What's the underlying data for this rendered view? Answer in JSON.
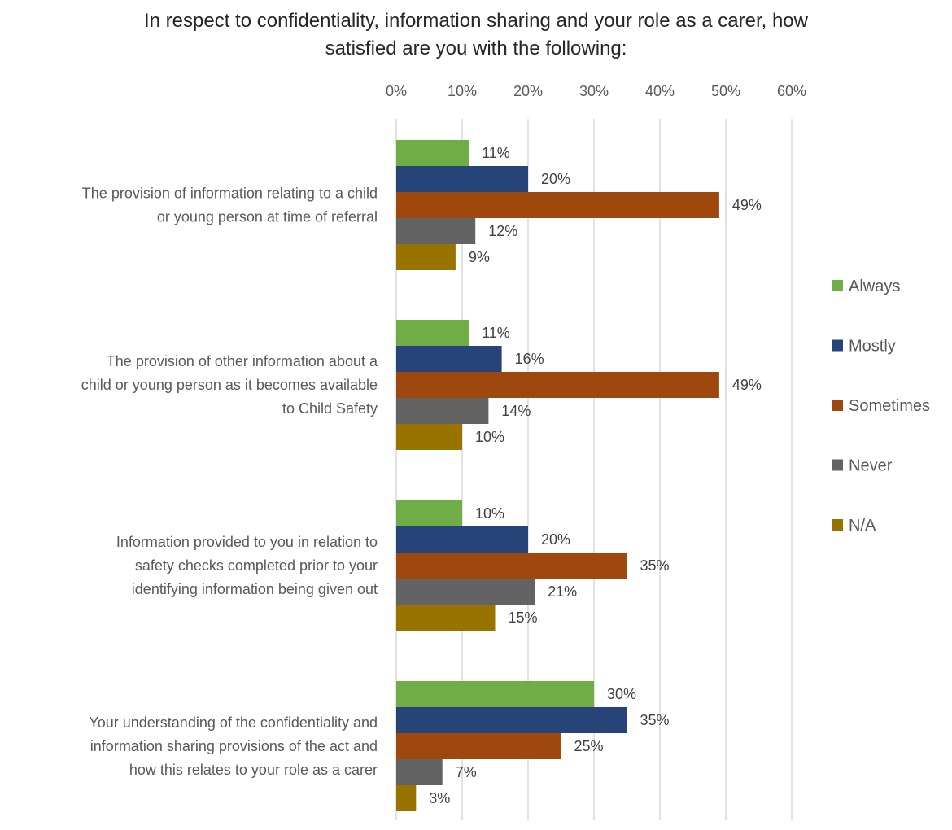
{
  "chart_data": {
    "type": "bar",
    "orientation": "horizontal",
    "title_lines": [
      "In respect to confidentiality, information sharing and your role as a carer, how",
      "satisfied are you with the following:"
    ],
    "categories": [
      [
        "The provision of information relating to a child",
        "or young person at time of referral"
      ],
      [
        "The provision of other information about a",
        "child or young person as it becomes available",
        "to Child Safety"
      ],
      [
        "Information provided to you in relation to",
        "safety checks completed prior to your",
        "identifying information being given out"
      ],
      [
        "Your understanding of the confidentiality and",
        "information sharing provisions of the act and",
        "how this relates to your role as a carer"
      ]
    ],
    "series": [
      {
        "name": "Always",
        "color": "#70AD47",
        "values": [
          11,
          11,
          10,
          30
        ],
        "labels": [
          "11%",
          "11%",
          "10%",
          "30%"
        ]
      },
      {
        "name": "Mostly",
        "color": "#264478",
        "values": [
          20,
          16,
          20,
          35
        ],
        "labels": [
          "20%",
          "16%",
          "20%",
          "35%"
        ]
      },
      {
        "name": "Sometimes",
        "color": "#9E480E",
        "values": [
          49,
          49,
          35,
          25
        ],
        "labels": [
          "49%",
          "49%",
          "35%",
          "25%"
        ]
      },
      {
        "name": "Never",
        "color": "#636363",
        "values": [
          12,
          14,
          21,
          7
        ],
        "labels": [
          "12%",
          "14%",
          "21%",
          "7%"
        ]
      },
      {
        "name": "N/A",
        "color": "#997300",
        "values": [
          9,
          10,
          15,
          3
        ],
        "labels": [
          "9%",
          "10%",
          "15%",
          "3%"
        ]
      }
    ],
    "xlim": [
      0,
      60
    ],
    "x_ticks": [
      "0%",
      "10%",
      "20%",
      "30%",
      "40%",
      "50%",
      "60%"
    ],
    "x_tick_values": [
      0,
      10,
      20,
      30,
      40,
      50,
      60
    ],
    "x_axis_position": "top",
    "grid": true,
    "legend_position": "right"
  }
}
